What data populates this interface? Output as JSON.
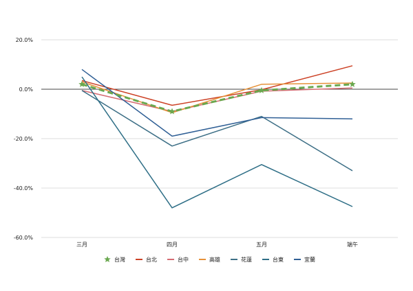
{
  "chart_data": {
    "type": "line",
    "title": "",
    "xlabel": "",
    "ylabel": "",
    "categories": [
      "三月",
      "四月",
      "五月",
      "端午"
    ],
    "ylim": [
      -60,
      20
    ],
    "yticks": [
      20,
      0,
      -20,
      -40,
      -60
    ],
    "ytick_labels": [
      "20.0%",
      "0.0%",
      "-20.0%",
      "-40.0%",
      "-60.0%"
    ],
    "grid": true,
    "legend_position": "bottom",
    "series": [
      {
        "name": "台灣",
        "color": "#6aa84f",
        "dash": true,
        "marker": "star",
        "values": [
          2.0,
          -9.0,
          -0.5,
          2.0
        ]
      },
      {
        "name": "台北",
        "color": "#cc4125",
        "dash": false,
        "marker": "none",
        "values": [
          3.5,
          -6.5,
          -0.2,
          9.5
        ]
      },
      {
        "name": "台中",
        "color": "#d56b72",
        "dash": false,
        "marker": "none",
        "values": [
          -0.5,
          -9.0,
          -0.8,
          0.5
        ]
      },
      {
        "name": "高雄",
        "color": "#e69138",
        "dash": false,
        "marker": "none",
        "values": [
          3.0,
          -9.5,
          2.0,
          2.5
        ]
      },
      {
        "name": "花蓮",
        "color": "#3d6f86",
        "dash": false,
        "marker": "none",
        "values": [
          -0.5,
          -23.0,
          -11.0,
          -33.0
        ]
      },
      {
        "name": "台東",
        "color": "#2e6e86",
        "dash": false,
        "marker": "none",
        "values": [
          5.0,
          -48.0,
          -30.5,
          -47.5
        ]
      },
      {
        "name": "宜蘭",
        "color": "#2f5f95",
        "dash": false,
        "marker": "none",
        "values": [
          8.0,
          -19.0,
          -11.5,
          -12.0
        ]
      }
    ]
  }
}
